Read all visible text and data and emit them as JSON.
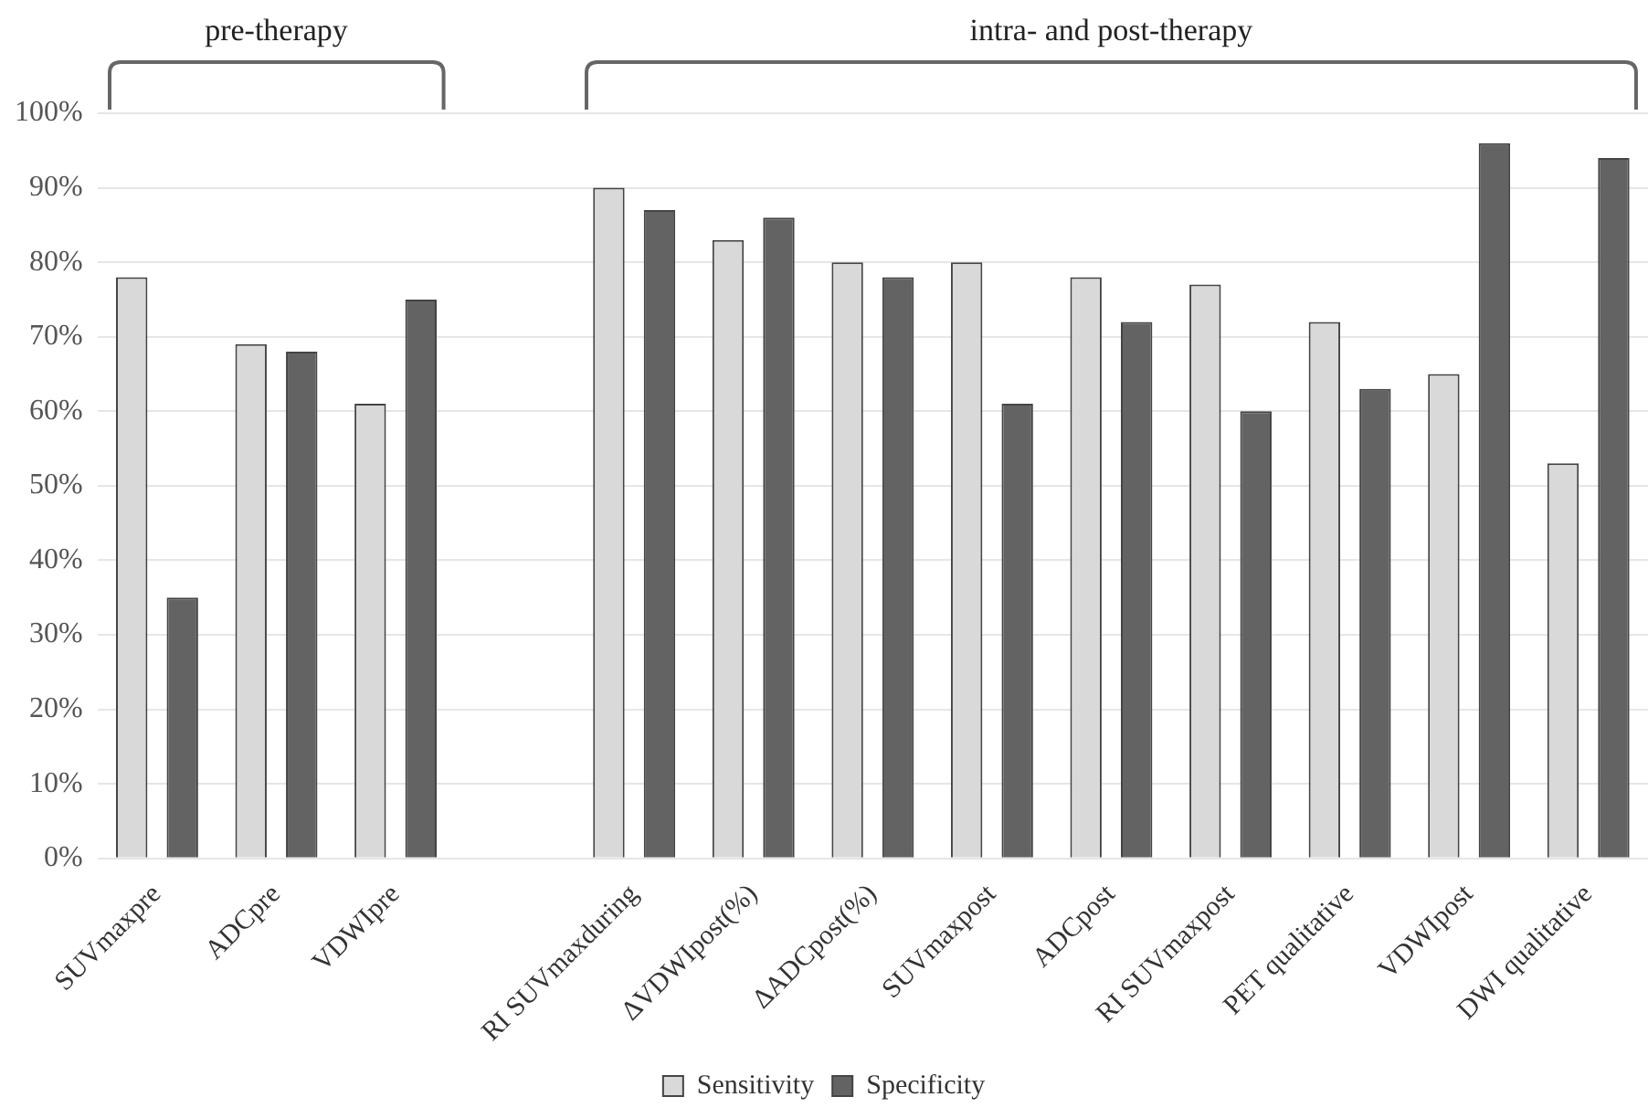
{
  "chart_data": {
    "type": "bar",
    "categories": [
      "SUVmaxpre",
      "ADCpre",
      "VDWIpre",
      null,
      "RI SUVmaxduring",
      "ΔVDWIpost(%)",
      "ΔADCpost(%)",
      "SUVmaxpost",
      "ADCpost",
      "RI SUVmaxpost",
      "PET qualitative",
      "VDWIpost",
      "DWI qualitative"
    ],
    "series": [
      {
        "name": "Sensitivity",
        "color": "#d9d9d9",
        "values": [
          78,
          69,
          61,
          null,
          90,
          83,
          80,
          80,
          78,
          77,
          72,
          65,
          53
        ]
      },
      {
        "name": "Specificity",
        "color": "#636363",
        "values": [
          35,
          68,
          75,
          null,
          87,
          86,
          78,
          61,
          72,
          60,
          63,
          96,
          94
        ]
      }
    ],
    "ylim": [
      0,
      100
    ],
    "yticks": [
      {
        "value": 0,
        "label": "0%"
      },
      {
        "value": 10,
        "label": "10%"
      },
      {
        "value": 20,
        "label": "20%"
      },
      {
        "value": 30,
        "label": "30%"
      },
      {
        "value": 40,
        "label": "40%"
      },
      {
        "value": 50,
        "label": "50%"
      },
      {
        "value": 60,
        "label": "60%"
      },
      {
        "value": 70,
        "label": "70%"
      },
      {
        "value": 80,
        "label": "80%"
      },
      {
        "value": 90,
        "label": "90%"
      },
      {
        "value": 100,
        "label": "100%"
      }
    ],
    "grid": "y",
    "legend": "bottom",
    "annotations": [
      "pre-therapy",
      "intra- and post-therapy"
    ]
  }
}
